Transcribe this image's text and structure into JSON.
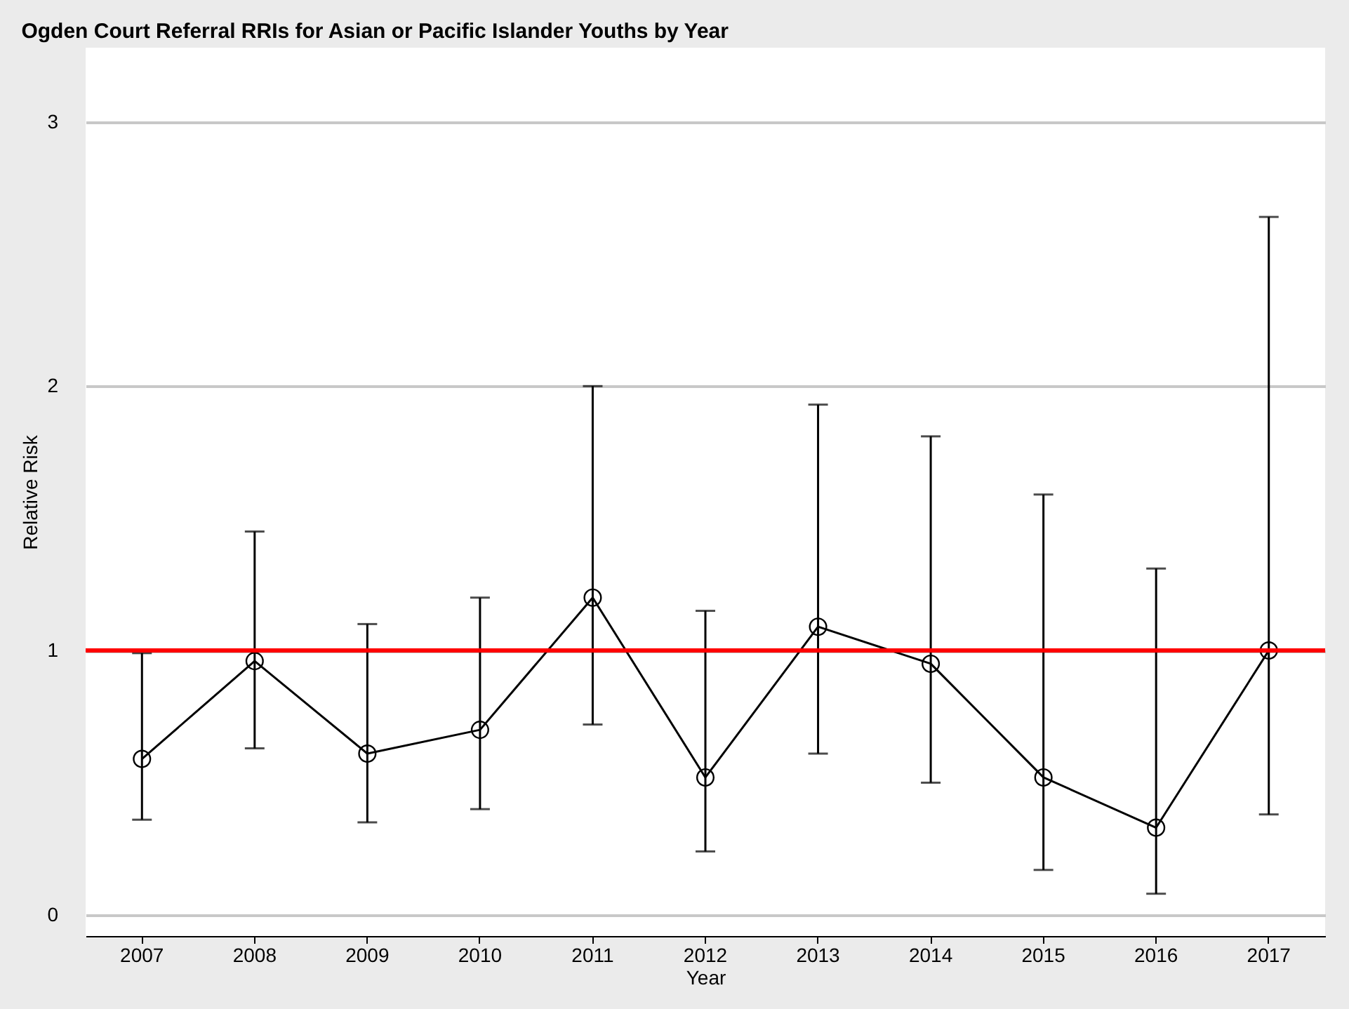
{
  "chart_data": {
    "type": "line",
    "title": "Ogden Court Referral RRIs for Asian or Pacific Islander Youths by Year",
    "xlabel": "Year",
    "ylabel": "Relative Risk",
    "categories": [
      "2007",
      "2008",
      "2009",
      "2010",
      "2011",
      "2012",
      "2013",
      "2014",
      "2015",
      "2016",
      "2017"
    ],
    "series": [
      {
        "color": "#000000",
        "values": [
          0.59,
          0.96,
          0.61,
          0.7,
          1.2,
          0.52,
          1.09,
          0.95,
          0.52,
          0.33,
          1.0
        ],
        "errors": [
          [
            0.36,
            0.99
          ],
          [
            0.63,
            1.45
          ],
          [
            0.35,
            1.1
          ],
          [
            0.4,
            1.2
          ],
          [
            0.72,
            2.0
          ],
          [
            0.24,
            1.15
          ],
          [
            0.61,
            1.93
          ],
          [
            0.5,
            1.81
          ],
          [
            0.17,
            1.59
          ],
          [
            0.08,
            1.31
          ],
          [
            0.38,
            2.64
          ]
        ]
      }
    ],
    "ylim": [
      -0.08,
      3.28
    ],
    "yticks": [
      0,
      1,
      2,
      3
    ],
    "grid": "y",
    "marker": "circle",
    "line_style": "solid",
    "ref_lines": [
      {
        "axis": "y",
        "value": 1,
        "color": "#ff0000"
      }
    ]
  }
}
